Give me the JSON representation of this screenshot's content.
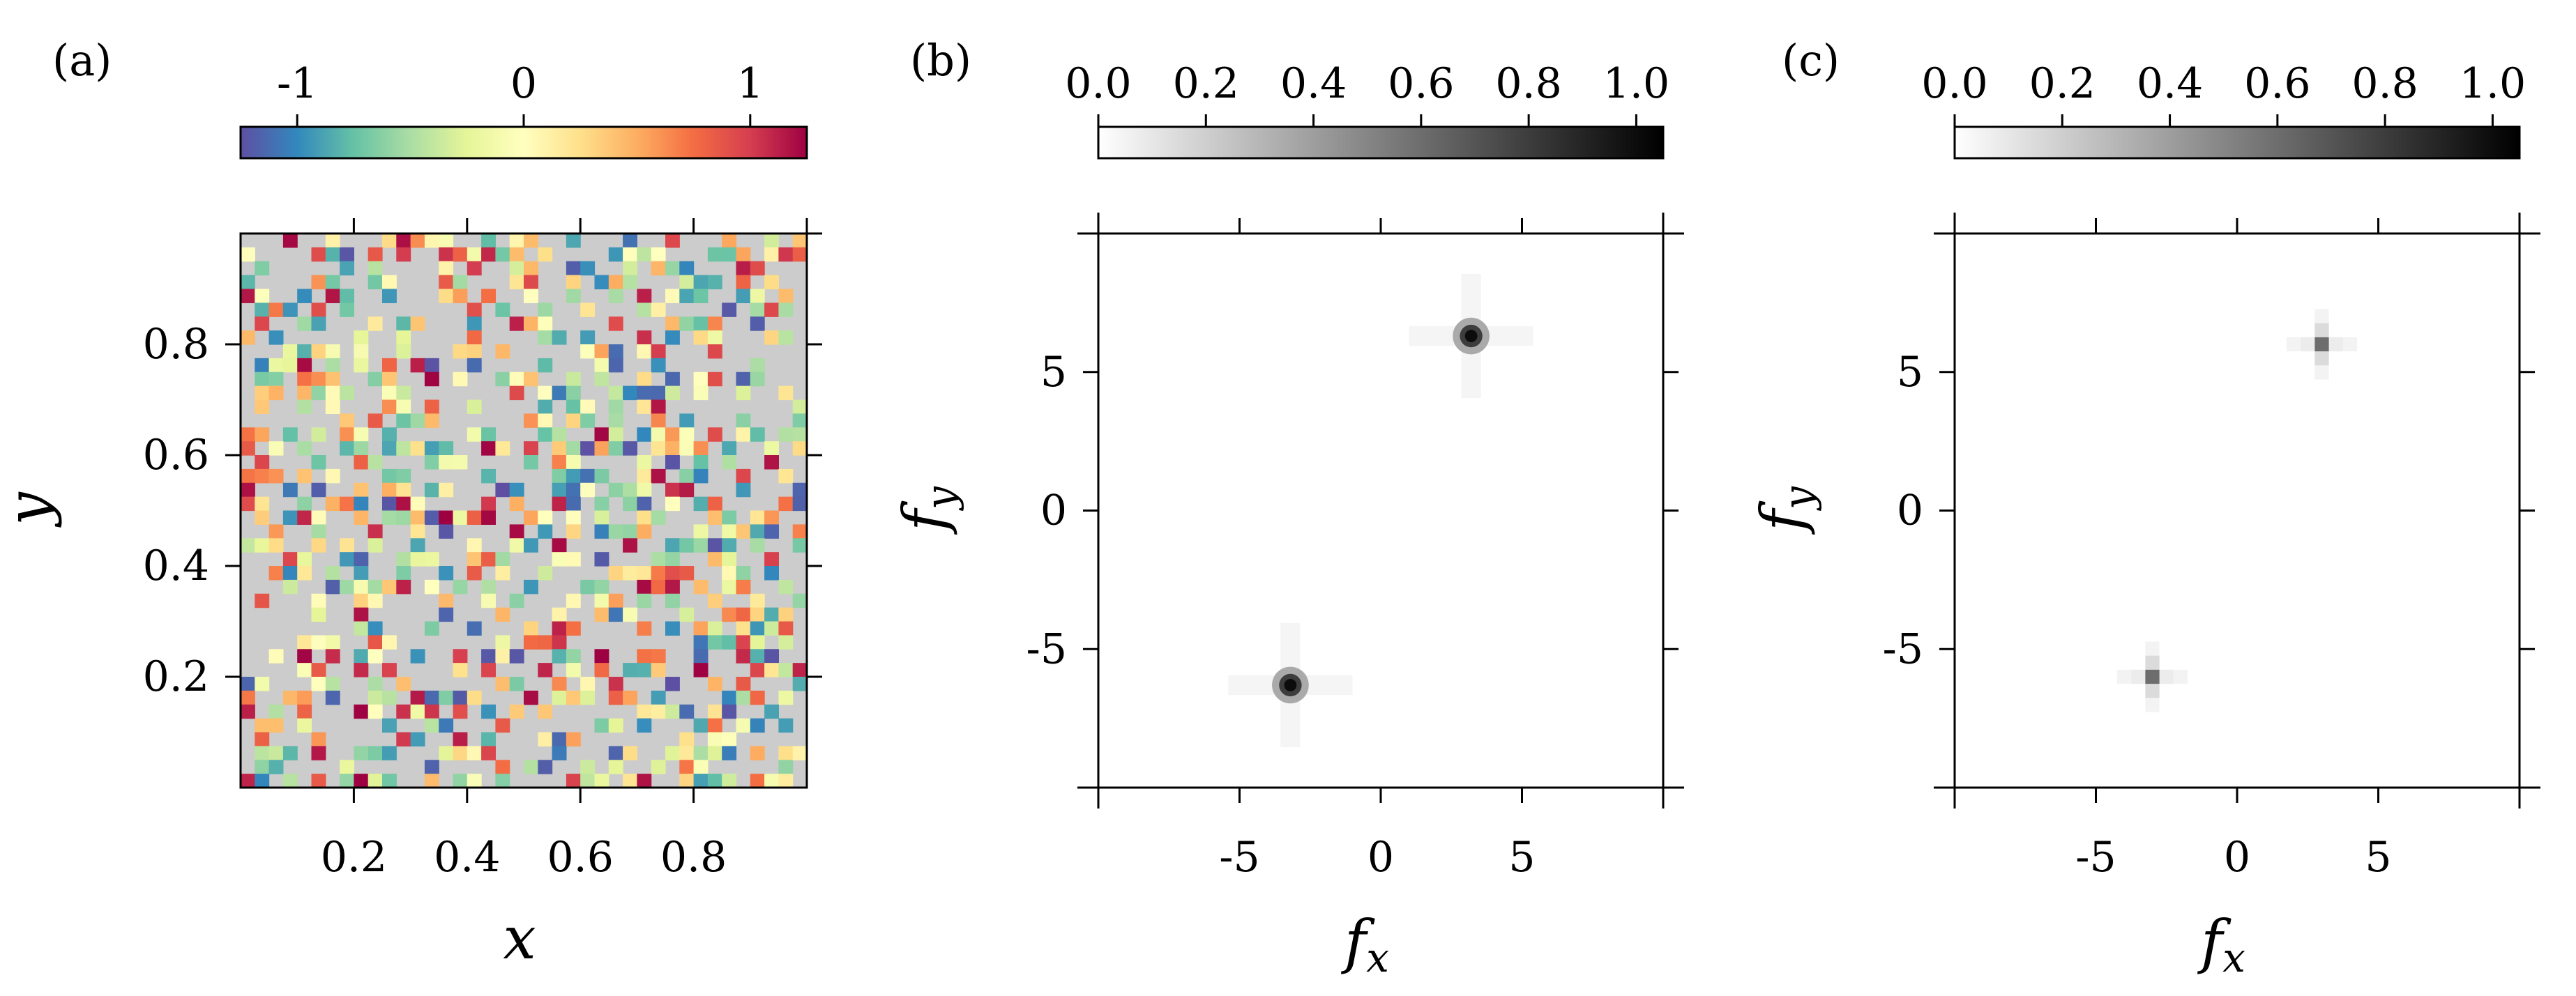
{
  "figure": {
    "panels": [
      {
        "id": "a",
        "label": "(a)",
        "colorbar": {
          "ticks": [
            -1,
            0,
            1
          ],
          "tick_labels": [
            "-1",
            "0",
            "1"
          ],
          "range": [
            -1.25,
            1.25
          ],
          "colormap": "Spectral_r"
        },
        "xlabel": "x",
        "ylabel": "y",
        "x_tick_labels": [
          "0.2",
          "0.4",
          "0.6",
          "0.8"
        ],
        "y_tick_labels": [
          "0.2",
          "0.4",
          "0.6",
          "0.8"
        ]
      },
      {
        "id": "b",
        "label": "(b)",
        "colorbar": {
          "ticks": [
            0,
            0.2,
            0.4,
            0.6,
            0.8,
            1
          ],
          "tick_labels": [
            "0.0",
            "0.2",
            "0.4",
            "0.6",
            "0.8",
            "1.0"
          ],
          "range": [
            0,
            1.05
          ],
          "colormap": "gray_r"
        },
        "xlabel": "f",
        "xlabel_sub": "x",
        "ylabel": "f",
        "ylabel_sub": "y",
        "x_tick_labels": [
          "-5",
          "0",
          "5"
        ],
        "y_tick_labels": [
          "-5",
          "0",
          "5"
        ]
      },
      {
        "id": "c",
        "label": "(c)",
        "colorbar": {
          "ticks": [
            0,
            0.2,
            0.4,
            0.6,
            0.8,
            1
          ],
          "tick_labels": [
            "0.0",
            "0.2",
            "0.4",
            "0.6",
            "0.8",
            "1.0"
          ],
          "range": [
            0,
            1.05
          ],
          "colormap": "gray_r"
        },
        "xlabel": "f",
        "xlabel_sub": "x",
        "ylabel": "f",
        "ylabel_sub": "y",
        "x_tick_labels": [
          "-5",
          "0",
          "5"
        ],
        "y_tick_labels": [
          "-5",
          "0",
          "5"
        ]
      }
    ]
  },
  "chart_data": [
    {
      "type": "heatmap",
      "panel": "a",
      "description_source": "random sparse field of values in [-1.25, 1.25] on a 40x40 grid over [0,1]x[0,1]; missing cells drawn gray",
      "xlim": [
        0,
        1
      ],
      "ylim": [
        0,
        1
      ],
      "grid_size": [
        40,
        40
      ],
      "value_range": [
        -1.25,
        1.25
      ],
      "fill_fraction": 0.45,
      "background_color": "#cccccc"
    },
    {
      "type": "heatmap",
      "panel": "b",
      "xlim": [
        -10,
        10
      ],
      "ylim": [
        -10,
        10
      ],
      "peaks": [
        {
          "fx": 3.2,
          "fy": 6.3,
          "value": 1.0
        },
        {
          "fx": -3.2,
          "fy": -6.3,
          "value": 1.0
        }
      ],
      "value_range": [
        0,
        1.05
      ]
    },
    {
      "type": "heatmap",
      "panel": "c",
      "xlim": [
        -10,
        10
      ],
      "ylim": [
        -10,
        10
      ],
      "peaks": [
        {
          "fx": 3.0,
          "fy": 6.0,
          "value": 0.6
        },
        {
          "fx": -3.0,
          "fy": -6.0,
          "value": 0.6
        }
      ],
      "value_range": [
        0,
        1.05
      ]
    }
  ]
}
